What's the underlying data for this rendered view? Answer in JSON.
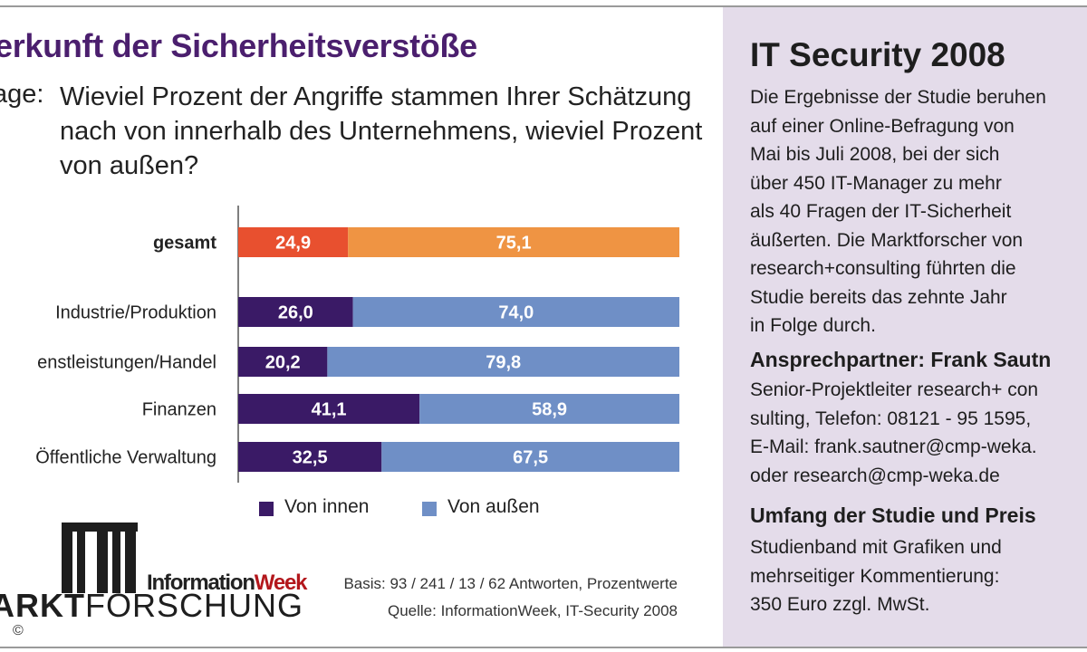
{
  "chart_data": {
    "type": "bar",
    "stacked": true,
    "orientation": "horizontal",
    "title": "erkunft der Sicherheitsverstöße",
    "question_prefix": "age:",
    "question": "Wieviel Prozent der Angriffe stammen Ihrer Schätzung nach von innerhalb des Unternehmens, wieviel Prozent von außen?",
    "categories": [
      "gesamt",
      "Industrie/Produktion",
      "enstleistungen/Handel",
      "Finanzen",
      "Öffentliche Verwaltung"
    ],
    "series": [
      {
        "name": "Von innen",
        "values": [
          24.9,
          26.0,
          20.2,
          41.1,
          32.5
        ],
        "labels": [
          "24,9",
          "26,0",
          "20,2",
          "41,1",
          "32,5"
        ]
      },
      {
        "name": "Von außen",
        "values": [
          75.1,
          74.0,
          79.8,
          58.9,
          67.5
        ],
        "labels": [
          "75,1",
          "74,0",
          "79,8",
          "58,9",
          "67,5"
        ]
      }
    ],
    "colors": {
      "innen": "#3a1a66",
      "aussen": "#6f8fc6",
      "gesamt_innen": "#e8502f",
      "gesamt_aussen": "#ef9443"
    },
    "xlim": [
      0,
      100
    ],
    "legend_position": "bottom",
    "basis": "Basis: 93 / 241 / 13 / 62 Antworten, Prozentwerte",
    "source": "Quelle: InformationWeek, IT-Security 2008"
  },
  "branding": {
    "logo_word": "ARKTFORSCHUNG",
    "logo_bold": "ARKT",
    "logo_rest": "FORSCHUNG",
    "publisher_a": "Information",
    "publisher_b": "Week",
    "copyright": "©"
  },
  "sidebar": {
    "title": "IT Security 2008",
    "intro": "Die Ergebnisse der Studie beruhen\nauf einer Online-Befragung von\nMai bis Juli 2008, bei der sich\nüber 450 IT-Manager zu mehr\nals 40 Fragen der IT-Sicherheit\näußerten. Die Marktforscher von\nresearch+consulting führten die\nStudie bereits das zehnte Jahr\nin Folge durch.",
    "contact_heading": "Ansprechpartner: Frank Sautn",
    "contact_text": "Senior-Projektleiter research+ con\nsulting, Telefon: 08121 - 95 1595,\nE-Mail: frank.sautner@cmp-weka.\noder research@cmp-weka.de",
    "scope_heading": "Umfang der Studie und Preis",
    "scope_text": "Studienband mit Grafiken und\nmehrseitiger Kommentierung:\n350 Euro zzgl. MwSt."
  }
}
